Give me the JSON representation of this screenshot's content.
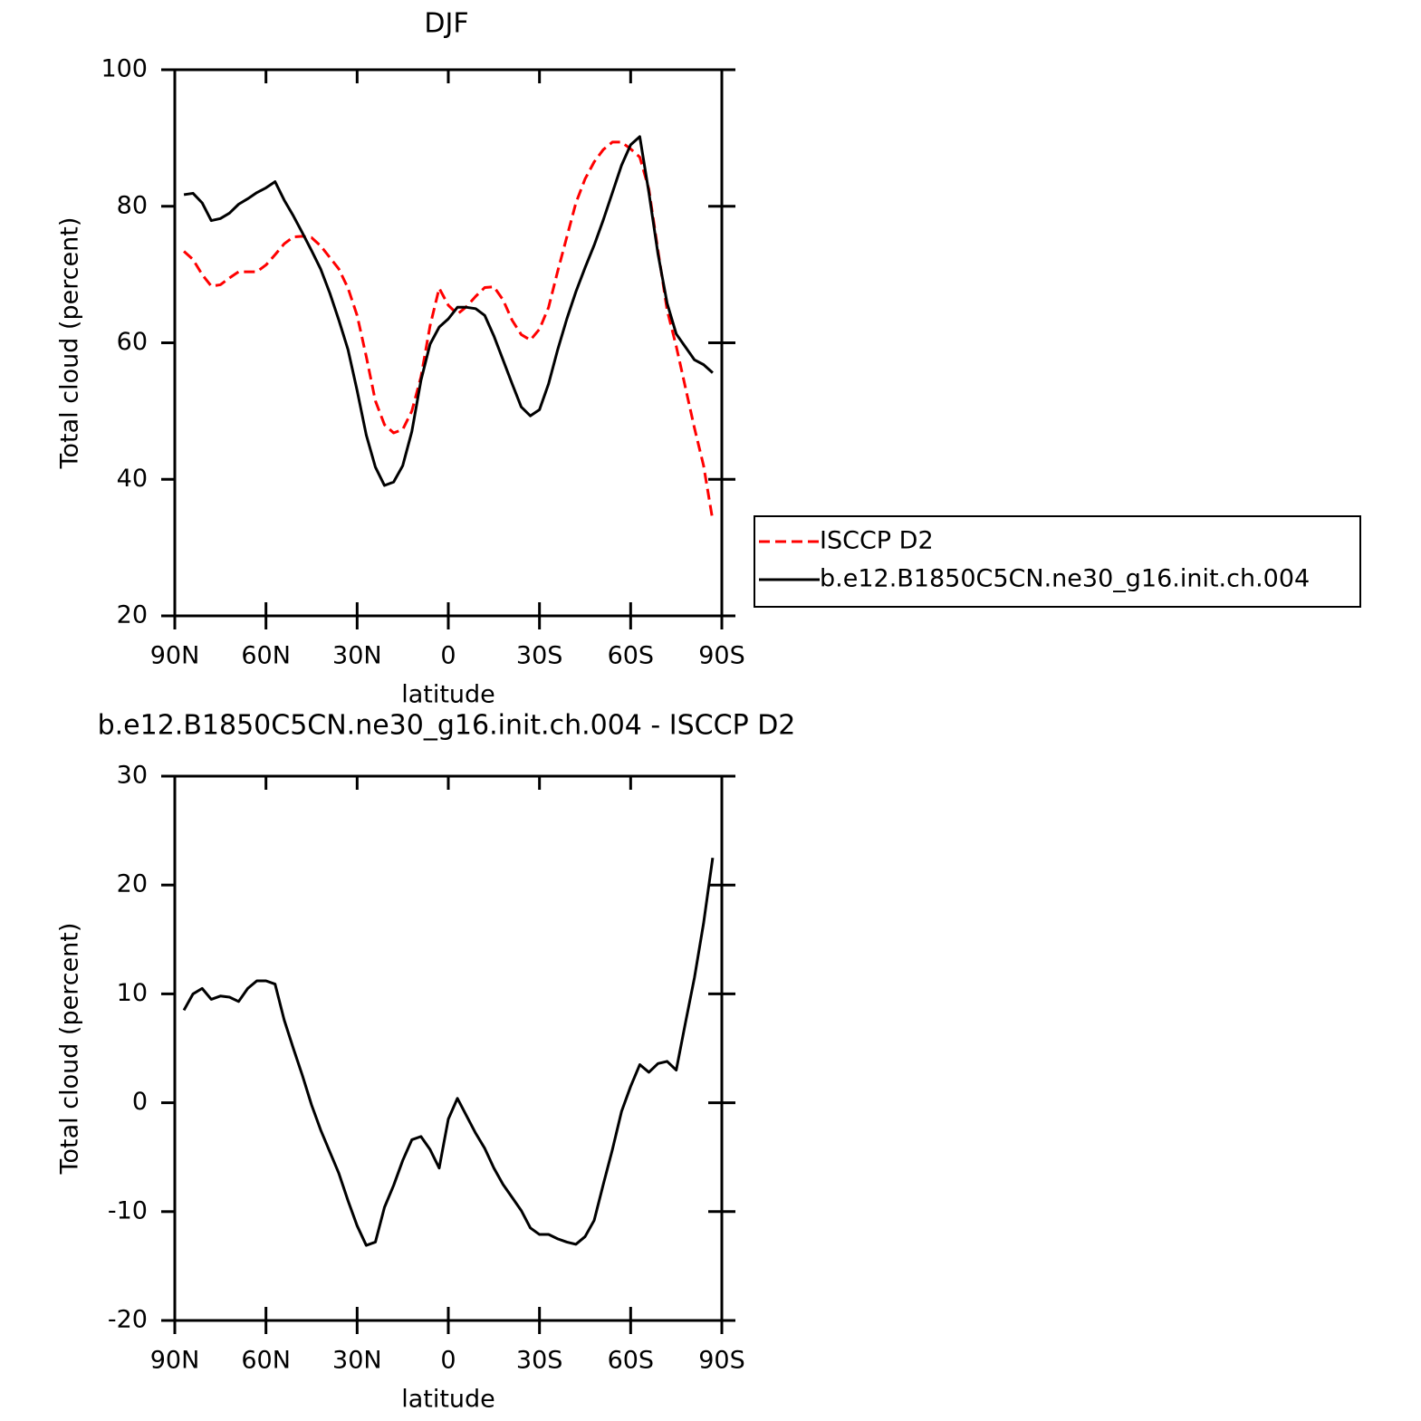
{
  "chart_data": [
    {
      "type": "line",
      "title": "DJF",
      "xlabel": "latitude",
      "ylabel": "Total cloud (percent)",
      "x": [
        87,
        84,
        81,
        78,
        75,
        72,
        69,
        66,
        63,
        60,
        57,
        54,
        51,
        48,
        45,
        42,
        39,
        36,
        33,
        30,
        27,
        24,
        21,
        18,
        15,
        12,
        9,
        6,
        3,
        0,
        -3,
        -6,
        -9,
        -12,
        -15,
        -18,
        -21,
        -24,
        -27,
        -30,
        -33,
        -36,
        -39,
        -42,
        -45,
        -48,
        -51,
        -54,
        -57,
        -60,
        -63,
        -66,
        -69,
        -72,
        -75,
        -78,
        -81,
        -84,
        -87
      ],
      "xlim": [
        90,
        -90
      ],
      "xticks": [
        {
          "value": 90,
          "label": "90N"
        },
        {
          "value": 60,
          "label": "60N"
        },
        {
          "value": 30,
          "label": "30N"
        },
        0,
        {
          "value": -30,
          "label": "30S"
        },
        {
          "value": -60,
          "label": "60S"
        },
        {
          "value": -90,
          "label": "90S"
        }
      ],
      "ylim": [
        20,
        100
      ],
      "yticks": [
        20,
        40,
        60,
        80,
        100
      ],
      "legend": "right",
      "series": [
        {
          "name": "ISCCP D2",
          "color": "#ff0000",
          "linestyle": "dashed",
          "values": [
            73.4,
            72.2,
            70,
            68.3,
            68.5,
            69.5,
            70.4,
            70.4,
            70.4,
            71.4,
            72.9,
            74.5,
            75.5,
            75.6,
            75.4,
            74.2,
            72.5,
            70.8,
            68,
            64,
            58,
            51.5,
            48,
            46.8,
            47.3,
            50,
            55,
            62.5,
            68,
            65.5,
            64.2,
            65.3,
            66.8,
            68.1,
            68.2,
            66.3,
            63.3,
            61.2,
            60.4,
            62,
            65.2,
            70.5,
            75.5,
            80.5,
            84,
            86.5,
            88.3,
            89.4,
            89.4,
            88.4,
            87.2,
            82.5,
            73.5,
            64.8,
            59.5,
            53.5,
            47.5,
            42,
            34
          ]
        },
        {
          "name": "b.e12.B1850C5CN.ne30_g16.init.ch.004",
          "color": "#000000",
          "linestyle": "solid",
          "values": [
            81.7,
            81.9,
            80.5,
            77.9,
            78.2,
            79,
            80.3,
            81.1,
            82,
            82.7,
            83.6,
            80.9,
            78.6,
            76.1,
            73.5,
            70.8,
            67.3,
            63.3,
            59,
            53,
            46.5,
            41.8,
            39.1,
            39.6,
            42,
            47,
            54.5,
            59.8,
            62.3,
            63.5,
            65.2,
            65.2,
            65,
            64,
            61,
            57.5,
            54,
            50.6,
            49.3,
            50.2,
            54,
            59,
            63.5,
            67.5,
            71,
            74.3,
            78,
            82,
            86,
            89,
            90.2,
            82,
            73,
            65.8,
            61.3,
            59.4,
            57.5,
            56.8,
            55.6
          ]
        }
      ]
    },
    {
      "type": "line",
      "title": "b.e12.B1850C5CN.ne30_g16.init.ch.004 - ISCCP D2",
      "xlabel": "latitude",
      "ylabel": "Total cloud (percent)",
      "x": [
        87,
        84,
        81,
        78,
        75,
        72,
        69,
        66,
        63,
        60,
        57,
        54,
        51,
        48,
        45,
        42,
        39,
        36,
        33,
        30,
        27,
        24,
        21,
        18,
        15,
        12,
        9,
        6,
        3,
        0,
        -3,
        -6,
        -9,
        -12,
        -15,
        -18,
        -21,
        -24,
        -27,
        -30,
        -33,
        -36,
        -39,
        -42,
        -45,
        -48,
        -51,
        -54,
        -57,
        -60,
        -63,
        -66,
        -69,
        -72,
        -75,
        -78,
        -81,
        -84,
        -87
      ],
      "xlim": [
        90,
        -90
      ],
      "xticks": [
        {
          "value": 90,
          "label": "90N"
        },
        {
          "value": 60,
          "label": "60N"
        },
        {
          "value": 30,
          "label": "30N"
        },
        0,
        {
          "value": -30,
          "label": "30S"
        },
        {
          "value": -60,
          "label": "60S"
        },
        {
          "value": -90,
          "label": "90S"
        }
      ],
      "ylim": [
        -20,
        30
      ],
      "yticks": [
        -20,
        -10,
        0,
        10,
        20,
        30
      ],
      "series": [
        {
          "color": "#000000",
          "linestyle": "solid",
          "values": [
            8.5,
            10,
            10.5,
            9.5,
            9.8,
            9.7,
            9.3,
            10.5,
            11.2,
            11.2,
            10.9,
            7.6,
            5,
            2.5,
            -0.2,
            -2.5,
            -4.5,
            -6.5,
            -9,
            -11.3,
            -13.1,
            -12.8,
            -9.6,
            -7.6,
            -5.3,
            -3.4,
            -3.1,
            -4.3,
            -6,
            -1.5,
            0.4,
            -1.2,
            -2.8,
            -4.2,
            -6,
            -7.5,
            -8.7,
            -9.9,
            -11.5,
            -12.1,
            -12.1,
            -12.5,
            -12.8,
            -13,
            -12.3,
            -10.8,
            -7.5,
            -4.3,
            -0.8,
            1.5,
            3.5,
            2.8,
            3.6,
            3.8,
            3,
            7.3,
            11.5,
            16.5,
            22.5
          ]
        }
      ]
    }
  ]
}
